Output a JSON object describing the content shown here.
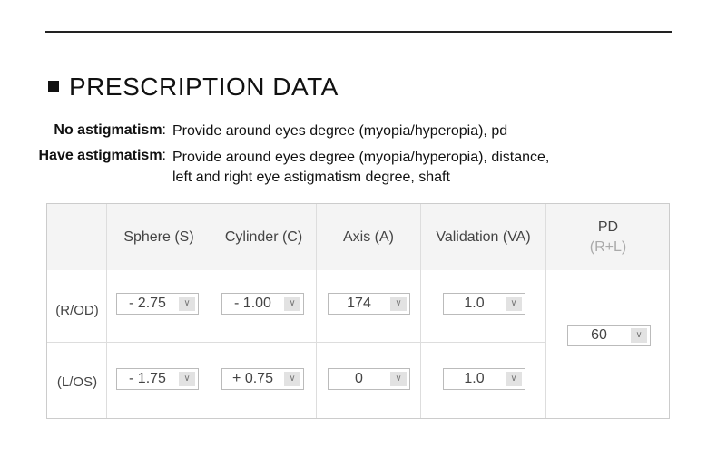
{
  "title": "PRESCRIPTION DATA",
  "notes": [
    {
      "label": "No astigmatism",
      "text": [
        "Provide around eyes degree (myopia/hyperopia), pd"
      ]
    },
    {
      "label": "Have astigmatism",
      "text": [
        "Provide around eyes degree (myopia/hyperopia), distance,",
        "left and right eye astigmatism degree, shaft"
      ]
    }
  ],
  "table": {
    "headers": [
      "Sphere (S)",
      "Cylinder (C)",
      "Axis (A)",
      "Validation (VA)"
    ],
    "pd_header": "PD",
    "pd_sub": "(R+L)",
    "rows": [
      {
        "label": "(R/OD)",
        "sphere": "- 2.75",
        "cylinder": "- 1.00",
        "axis": "174",
        "va": "1.0"
      },
      {
        "label": "(L/OS)",
        "sphere": "- 1.75",
        "cylinder": "+ 0.75",
        "axis": "0",
        "va": "1.0"
      }
    ],
    "pd": "60",
    "dropdown_icon": "chevron-down-icon"
  }
}
